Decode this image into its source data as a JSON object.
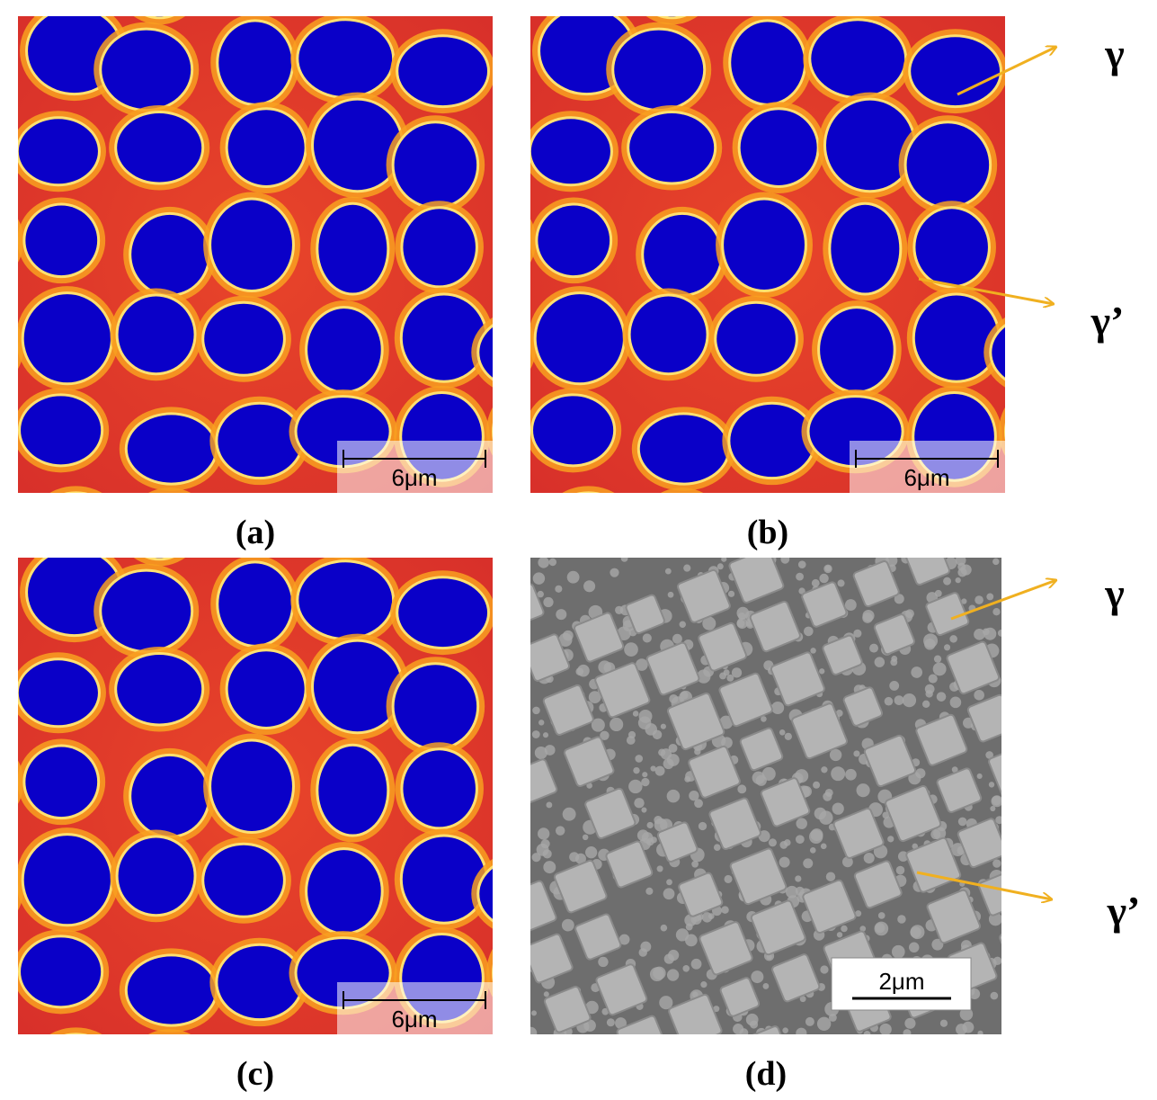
{
  "panels": [
    {
      "label": "(a)",
      "scale_bar": "6μm"
    },
    {
      "label": "(b)",
      "scale_bar": "6μm"
    },
    {
      "label": "(c)",
      "scale_bar": "6μm"
    },
    {
      "label": "(d)",
      "scale_bar": "2μm"
    }
  ],
  "annotations": [
    {
      "label": "γ"
    },
    {
      "label": "γ’"
    },
    {
      "label": "γ"
    },
    {
      "label": "γ’"
    }
  ]
}
